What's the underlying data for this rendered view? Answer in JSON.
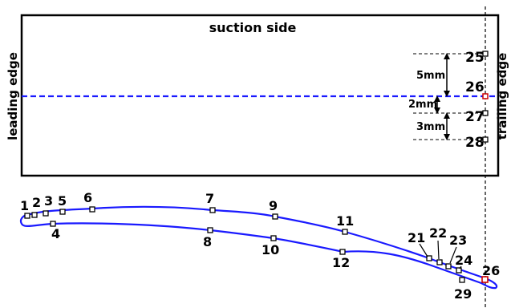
{
  "panel": {
    "suction_label": "suction side",
    "leading_label": "leading edge",
    "trailing_label": "trailing edge",
    "dim_5": "5mm",
    "dim_2": "2mm",
    "dim_3": "3mm",
    "points": [
      {
        "id": "25",
        "color": "#000000"
      },
      {
        "id": "26",
        "color": "#cc0000"
      },
      {
        "id": "27",
        "color": "#000000"
      },
      {
        "id": "28",
        "color": "#000000"
      }
    ]
  },
  "airfoil": {
    "stroke_color": "#1a1aff",
    "markers": [
      {
        "id": "1"
      },
      {
        "id": "2"
      },
      {
        "id": "3"
      },
      {
        "id": "4"
      },
      {
        "id": "5"
      },
      {
        "id": "6"
      },
      {
        "id": "7"
      },
      {
        "id": "8"
      },
      {
        "id": "9"
      },
      {
        "id": "10"
      },
      {
        "id": "11"
      },
      {
        "id": "12"
      },
      {
        "id": "21"
      },
      {
        "id": "22"
      },
      {
        "id": "23"
      },
      {
        "id": "24"
      },
      {
        "id": "26",
        "color": "#cc0000"
      },
      {
        "id": "29"
      }
    ]
  },
  "colors": {
    "blue": "#1a1aff",
    "red": "#cc0000",
    "black": "#000000"
  }
}
